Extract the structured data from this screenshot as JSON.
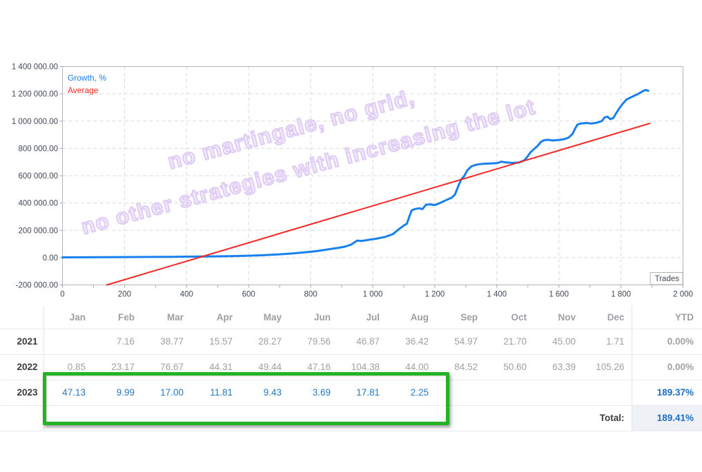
{
  "watermark": {
    "line1": "no martingale, no grid,",
    "line2": "no other strategies with increasing the lot"
  },
  "chart_data": {
    "type": "line",
    "title": "",
    "xlabel": "Trades",
    "ylabel": "",
    "xlim": [
      0,
      2000
    ],
    "ylim": [
      -200000,
      1400000
    ],
    "grid": "dashed",
    "legend_position": "top-left",
    "legend": [
      {
        "label": "Growth, %",
        "color": "#1780ef"
      },
      {
        "label": "Average",
        "color": "#f92525"
      }
    ],
    "x_ticks": [
      {
        "v": 0,
        "label": "0"
      },
      {
        "v": 200,
        "label": "200"
      },
      {
        "v": 400,
        "label": "400"
      },
      {
        "v": 600,
        "label": "600"
      },
      {
        "v": 800,
        "label": "800"
      },
      {
        "v": 1000,
        "label": "1 000"
      },
      {
        "v": 1200,
        "label": "1 200"
      },
      {
        "v": 1400,
        "label": "1 400"
      },
      {
        "v": 1600,
        "label": "1 600"
      },
      {
        "v": 1800,
        "label": "1 800"
      },
      {
        "v": 2000,
        "label": "2 000"
      }
    ],
    "y_ticks": [
      {
        "v": 1400000,
        "label": "1 400 000.00"
      },
      {
        "v": 1200000,
        "label": "1 200 000.00"
      },
      {
        "v": 1000000,
        "label": "1 000 000.00"
      },
      {
        "v": 800000,
        "label": "800 000.00"
      },
      {
        "v": 600000,
        "label": "600 000.00"
      },
      {
        "v": 400000,
        "label": "400 000.00"
      },
      {
        "v": 200000,
        "label": "200 000.00"
      },
      {
        "v": 0,
        "label": "0.00"
      },
      {
        "v": -200000,
        "label": "-200 000.00"
      }
    ],
    "series": [
      {
        "name": "Growth, %",
        "color": "#1780ef",
        "width": 3,
        "points": [
          [
            0,
            2000
          ],
          [
            60,
            2500
          ],
          [
            120,
            3000
          ],
          [
            200,
            4000
          ],
          [
            280,
            5000
          ],
          [
            360,
            6000
          ],
          [
            420,
            7500
          ],
          [
            480,
            9000
          ],
          [
            540,
            11000
          ],
          [
            600,
            14000
          ],
          [
            650,
            18000
          ],
          [
            700,
            24000
          ],
          [
            740,
            30000
          ],
          [
            780,
            38000
          ],
          [
            820,
            48000
          ],
          [
            860,
            62000
          ],
          [
            890,
            72000
          ],
          [
            910,
            80000
          ],
          [
            930,
            95000
          ],
          [
            950,
            125000
          ],
          [
            965,
            122000
          ],
          [
            985,
            130000
          ],
          [
            1010,
            138000
          ],
          [
            1040,
            152000
          ],
          [
            1065,
            172000
          ],
          [
            1085,
            210000
          ],
          [
            1100,
            235000
          ],
          [
            1110,
            248000
          ],
          [
            1118,
            300000
          ],
          [
            1125,
            345000
          ],
          [
            1135,
            355000
          ],
          [
            1150,
            362000
          ],
          [
            1160,
            355000
          ],
          [
            1172,
            388000
          ],
          [
            1185,
            390000
          ],
          [
            1200,
            385000
          ],
          [
            1215,
            398000
          ],
          [
            1235,
            420000
          ],
          [
            1255,
            440000
          ],
          [
            1265,
            462000
          ],
          [
            1275,
            520000
          ],
          [
            1285,
            572000
          ],
          [
            1295,
            598000
          ],
          [
            1305,
            640000
          ],
          [
            1318,
            668000
          ],
          [
            1330,
            678000
          ],
          [
            1345,
            685000
          ],
          [
            1360,
            688000
          ],
          [
            1380,
            690000
          ],
          [
            1400,
            692000
          ],
          [
            1415,
            703000
          ],
          [
            1430,
            697000
          ],
          [
            1450,
            694000
          ],
          [
            1470,
            696000
          ],
          [
            1487,
            710000
          ],
          [
            1497,
            735000
          ],
          [
            1508,
            770000
          ],
          [
            1517,
            790000
          ],
          [
            1530,
            815000
          ],
          [
            1542,
            848000
          ],
          [
            1552,
            860000
          ],
          [
            1565,
            863000
          ],
          [
            1580,
            858000
          ],
          [
            1600,
            862000
          ],
          [
            1618,
            868000
          ],
          [
            1632,
            880000
          ],
          [
            1645,
            910000
          ],
          [
            1652,
            945000
          ],
          [
            1660,
            975000
          ],
          [
            1672,
            983000
          ],
          [
            1690,
            986000
          ],
          [
            1705,
            982000
          ],
          [
            1722,
            988000
          ],
          [
            1738,
            1000000
          ],
          [
            1748,
            1028000
          ],
          [
            1757,
            1032000
          ],
          [
            1765,
            1015000
          ],
          [
            1775,
            1022000
          ],
          [
            1785,
            1060000
          ],
          [
            1795,
            1095000
          ],
          [
            1805,
            1125000
          ],
          [
            1818,
            1158000
          ],
          [
            1830,
            1172000
          ],
          [
            1842,
            1185000
          ],
          [
            1852,
            1195000
          ],
          [
            1862,
            1208000
          ],
          [
            1872,
            1222000
          ],
          [
            1880,
            1228000
          ],
          [
            1888,
            1222000
          ]
        ]
      },
      {
        "name": "Average",
        "color": "#f92525",
        "width": 2,
        "points": [
          [
            143,
            -200000
          ],
          [
            1893,
            983000
          ]
        ]
      }
    ]
  },
  "table": {
    "columns": [
      "Jan",
      "Feb",
      "Mar",
      "Apr",
      "May",
      "Jun",
      "Jul",
      "Aug",
      "Sep",
      "Oct",
      "Nov",
      "Dec",
      "YTD"
    ],
    "rows": [
      {
        "year": "2021",
        "style": "gray",
        "values": [
          "",
          "7.16",
          "38.77",
          "15.57",
          "28.27",
          "79.56",
          "46.87",
          "36.42",
          "54.97",
          "21.70",
          "45.00",
          "1.71"
        ],
        "ytd": "0.00%"
      },
      {
        "year": "2022",
        "style": "gray",
        "values": [
          "0.85",
          "23.17",
          "76.67",
          "44.31",
          "49.44",
          "47.16",
          "104.38",
          "44.00",
          "84.52",
          "50.60",
          "63.39",
          "105.26"
        ],
        "ytd": "0.00%"
      },
      {
        "year": "2023",
        "style": "blue",
        "values": [
          "47.13",
          "9.99",
          "17.00",
          "11.81",
          "9.43",
          "3.69",
          "17.81",
          "2.25",
          "",
          "",
          "",
          ""
        ],
        "ytd": "189.37%"
      }
    ],
    "total_label": "Total:",
    "total_value": "189.41%"
  },
  "colors": {
    "growth_line": "#1780ef",
    "average_line": "#f92525",
    "watermark": "#dbc4f3",
    "highlight_box": "#24b324",
    "grid": "#d9d9d9",
    "axis_text": "#3f4957",
    "table_gray": "#a0a0a0",
    "table_blue": "#2579c4",
    "total_blue": "#1e6fc0"
  }
}
